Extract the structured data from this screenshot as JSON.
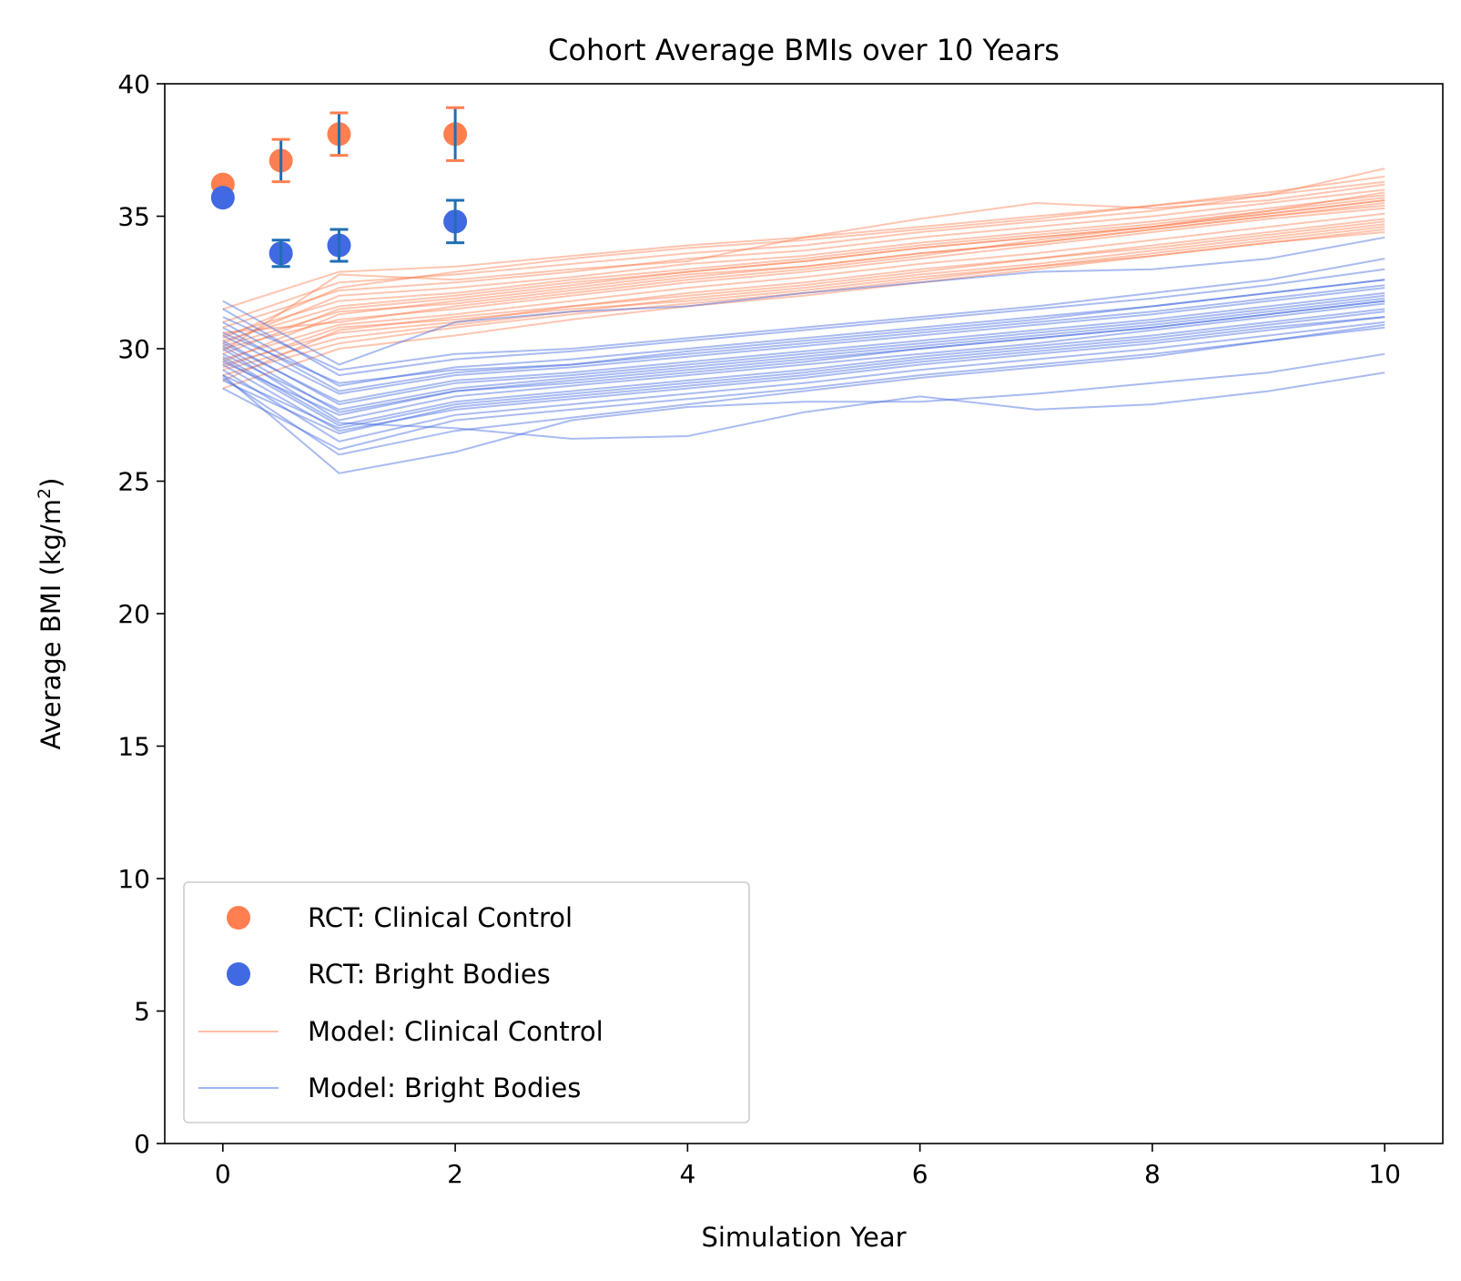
{
  "chart_data": {
    "type": "line",
    "title": "Cohort Average BMIs over 10 Years",
    "xlabel": "Simulation Year",
    "ylabel_main": "Average BMI (kg/m",
    "ylabel_sup": "2",
    "ylabel_end": ")",
    "xlim": [
      -0.5,
      10.5
    ],
    "ylim": [
      0,
      40
    ],
    "x_ticks": [
      "0",
      "2",
      "4",
      "6",
      "8",
      "10"
    ],
    "y_ticks": [
      "0",
      "5",
      "10",
      "15",
      "20",
      "25",
      "30",
      "35",
      "40"
    ],
    "grid": false,
    "legend_position": "lower-left",
    "colors": {
      "clinical_control": "#ff7f50",
      "bright_bodies": "#4169e1",
      "error_bar_blue": "#1f6fb4"
    },
    "legend": [
      {
        "label": "RCT: Clinical Control",
        "kind": "marker",
        "series": "clinical_control"
      },
      {
        "label": "RCT: Bright Bodies",
        "kind": "marker",
        "series": "bright_bodies"
      },
      {
        "label": "Model: Clinical Control",
        "kind": "line",
        "series": "clinical_control"
      },
      {
        "label": "Model: Bright Bodies",
        "kind": "line",
        "series": "bright_bodies"
      }
    ],
    "rct_points": [
      {
        "series": "clinical_control",
        "x": 0,
        "y": 36.2
      },
      {
        "series": "bright_bodies",
        "x": 0,
        "y": 35.7
      },
      {
        "series": "clinical_control",
        "x": 0.5,
        "y": 37.1,
        "err": 0.8
      },
      {
        "series": "bright_bodies",
        "x": 0.5,
        "y": 33.6,
        "err": 0.5
      },
      {
        "series": "clinical_control",
        "x": 1,
        "y": 38.1,
        "err": 0.8
      },
      {
        "series": "bright_bodies",
        "x": 1,
        "y": 33.9,
        "err": 0.6
      },
      {
        "series": "clinical_control",
        "x": 2,
        "y": 38.1,
        "err": 1.0
      },
      {
        "series": "bright_bodies",
        "x": 2,
        "y": 34.8,
        "err": 0.8
      }
    ],
    "model_x": [
      0,
      1,
      2,
      3,
      4,
      5,
      6,
      7,
      8,
      9,
      10
    ],
    "model_runs": {
      "clinical_control": [
        [
          29.5,
          31.3,
          31.8,
          32.3,
          32.8,
          33.1,
          33.6,
          34.0,
          34.5,
          35.0,
          35.5
        ],
        [
          30.2,
          32.0,
          32.3,
          32.7,
          33.2,
          33.5,
          34.0,
          34.4,
          34.8,
          35.3,
          35.8
        ],
        [
          28.8,
          30.7,
          31.2,
          31.6,
          32.1,
          32.5,
          33.0,
          33.4,
          33.9,
          34.4,
          34.9
        ],
        [
          31.0,
          32.5,
          32.8,
          33.2,
          33.6,
          33.9,
          34.4,
          34.8,
          35.2,
          35.8,
          36.3
        ],
        [
          29.0,
          30.2,
          30.8,
          31.3,
          31.7,
          32.1,
          32.6,
          33.1,
          33.6,
          34.1,
          34.6
        ],
        [
          30.5,
          31.8,
          32.1,
          32.6,
          33.0,
          33.4,
          33.9,
          34.3,
          34.7,
          35.2,
          35.7
        ],
        [
          29.8,
          31.5,
          31.9,
          32.4,
          32.9,
          33.3,
          33.8,
          34.2,
          34.6,
          35.1,
          35.6
        ],
        [
          30.0,
          31.1,
          31.5,
          32.0,
          32.5,
          32.9,
          33.4,
          33.9,
          34.4,
          34.9,
          35.3
        ],
        [
          29.2,
          30.4,
          30.9,
          31.4,
          31.9,
          32.3,
          32.8,
          33.2,
          33.7,
          34.2,
          34.7
        ],
        [
          31.5,
          32.9,
          33.1,
          33.5,
          33.9,
          34.2,
          34.6,
          35.0,
          35.4,
          35.9,
          36.5
        ],
        [
          29.6,
          30.9,
          31.3,
          31.8,
          32.3,
          32.7,
          33.2,
          33.6,
          34.1,
          34.6,
          35.1
        ],
        [
          30.3,
          31.6,
          32.0,
          32.5,
          32.9,
          33.3,
          33.8,
          34.2,
          34.6,
          35.1,
          35.6
        ],
        [
          28.5,
          30.0,
          30.5,
          31.1,
          31.6,
          32.0,
          32.5,
          33.0,
          33.5,
          34.0,
          34.4
        ],
        [
          30.8,
          32.2,
          32.5,
          32.9,
          33.4,
          33.7,
          34.2,
          34.6,
          35.0,
          35.5,
          36.0
        ],
        [
          29.4,
          30.6,
          31.0,
          31.6,
          32.0,
          32.4,
          32.9,
          33.4,
          33.8,
          34.3,
          34.8
        ],
        [
          30.1,
          31.4,
          31.7,
          32.2,
          32.7,
          33.1,
          33.6,
          34.0,
          34.5,
          35.0,
          35.4
        ],
        [
          29.9,
          32.8,
          32.6,
          33.0,
          33.3,
          34.2,
          34.9,
          35.5,
          35.3,
          35.6,
          36.2
        ],
        [
          30.6,
          31.0,
          31.6,
          32.1,
          32.6,
          33.0,
          33.5,
          34.1,
          34.6,
          35.2,
          35.9
        ],
        [
          29.3,
          30.8,
          31.1,
          31.5,
          31.8,
          32.2,
          32.7,
          33.1,
          33.5,
          34.0,
          34.5
        ],
        [
          30.4,
          32.3,
          32.9,
          33.4,
          33.8,
          34.1,
          34.5,
          34.9,
          35.4,
          35.8,
          36.8
        ]
      ],
      "bright_bodies": [
        [
          29.5,
          27.5,
          28.4,
          28.7,
          29.1,
          29.5,
          30.0,
          30.4,
          30.8,
          31.3,
          31.8
        ],
        [
          30.2,
          28.0,
          28.8,
          29.1,
          29.5,
          29.9,
          30.3,
          30.7,
          31.1,
          31.6,
          32.1
        ],
        [
          28.8,
          26.8,
          27.8,
          28.2,
          28.6,
          29.0,
          29.5,
          29.9,
          30.3,
          30.8,
          31.2
        ],
        [
          31.0,
          28.6,
          29.3,
          29.6,
          30.0,
          30.4,
          30.8,
          31.2,
          31.6,
          32.1,
          32.6
        ],
        [
          29.0,
          27.0,
          27.9,
          28.3,
          28.7,
          29.1,
          29.6,
          30.0,
          30.4,
          30.9,
          31.4
        ],
        [
          30.5,
          28.3,
          29.0,
          29.3,
          29.7,
          30.1,
          30.5,
          30.9,
          31.3,
          31.8,
          32.3
        ],
        [
          29.8,
          27.7,
          28.5,
          28.9,
          29.3,
          29.7,
          30.1,
          30.5,
          30.9,
          31.4,
          31.9
        ],
        [
          30.0,
          27.3,
          28.2,
          28.6,
          29.0,
          29.4,
          29.8,
          30.2,
          30.7,
          31.2,
          31.7
        ],
        [
          29.2,
          26.5,
          27.5,
          27.9,
          28.3,
          28.7,
          29.2,
          29.6,
          30.0,
          30.5,
          31.0
        ],
        [
          31.5,
          29.0,
          29.6,
          29.9,
          30.3,
          30.7,
          31.1,
          31.5,
          31.9,
          32.4,
          33.0
        ],
        [
          29.6,
          27.1,
          28.0,
          28.4,
          28.8,
          29.2,
          29.7,
          30.1,
          30.5,
          31.0,
          31.5
        ],
        [
          30.3,
          27.9,
          28.7,
          29.0,
          29.4,
          29.8,
          30.2,
          30.6,
          31.0,
          31.5,
          32.0
        ],
        [
          28.5,
          26.2,
          27.3,
          27.7,
          28.1,
          28.5,
          29.0,
          29.4,
          29.8,
          30.3,
          30.8
        ],
        [
          30.8,
          28.4,
          29.1,
          29.4,
          29.8,
          30.2,
          30.6,
          31.0,
          31.4,
          31.9,
          32.4
        ],
        [
          29.4,
          26.9,
          27.7,
          28.1,
          28.5,
          28.9,
          29.4,
          29.8,
          30.2,
          30.7,
          31.2
        ],
        [
          30.1,
          27.6,
          28.4,
          28.8,
          29.2,
          29.6,
          30.0,
          30.4,
          30.8,
          31.3,
          31.8
        ],
        [
          31.8,
          29.4,
          31.0,
          31.4,
          31.6,
          32.1,
          32.5,
          32.9,
          33.0,
          33.4,
          34.2
        ],
        [
          29.0,
          25.3,
          26.1,
          27.3,
          27.8,
          28.0,
          28.0,
          28.3,
          28.7,
          29.1,
          29.8
        ],
        [
          29.7,
          27.2,
          27.0,
          26.6,
          26.7,
          27.6,
          28.2,
          27.7,
          27.9,
          28.4,
          29.1
        ],
        [
          30.6,
          28.7,
          29.2,
          29.4,
          29.9,
          30.3,
          30.7,
          31.1,
          31.6,
          32.1,
          32.6
        ],
        [
          28.9,
          26.0,
          26.9,
          27.4,
          27.9,
          28.4,
          28.9,
          29.3,
          29.7,
          30.3,
          30.9
        ],
        [
          31.2,
          29.2,
          29.8,
          30.0,
          30.4,
          30.8,
          31.2,
          31.6,
          32.1,
          32.6,
          33.4
        ]
      ]
    }
  }
}
